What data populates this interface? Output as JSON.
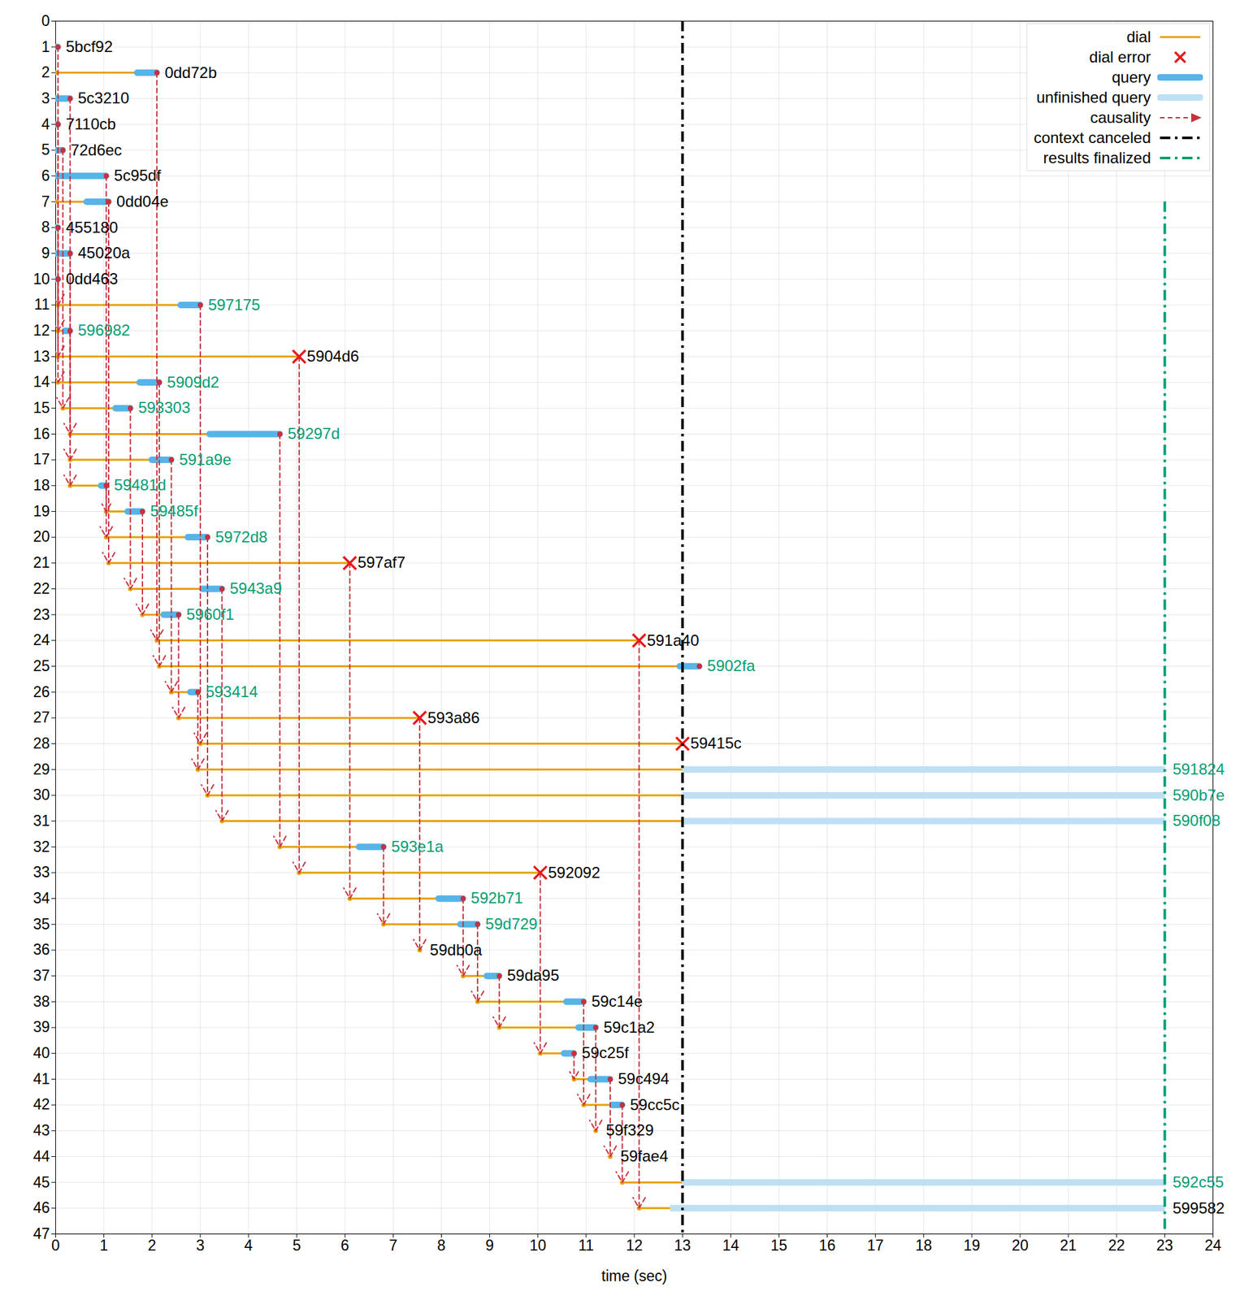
{
  "chart_data": {
    "type": "timeline",
    "xlabel": "time (sec)",
    "xlim": [
      0,
      24
    ],
    "xticks": [
      0,
      1,
      2,
      3,
      4,
      5,
      6,
      7,
      8,
      9,
      10,
      11,
      12,
      13,
      14,
      15,
      16,
      17,
      18,
      19,
      20,
      21,
      22,
      23,
      24
    ],
    "ylim": [
      0,
      47
    ],
    "yticks": [
      0,
      1,
      2,
      3,
      4,
      5,
      6,
      7,
      8,
      9,
      10,
      11,
      12,
      13,
      14,
      15,
      16,
      17,
      18,
      19,
      20,
      21,
      22,
      23,
      24,
      25,
      26,
      27,
      28,
      29,
      30,
      31,
      32,
      33,
      34,
      35,
      36,
      37,
      38,
      39,
      40,
      41,
      42,
      43,
      44,
      45,
      46,
      47
    ],
    "grid": true,
    "legend": "top-right",
    "series": [
      {
        "name": "dial",
        "color": "#e69f00",
        "line_style": "solid"
      },
      {
        "name": "dial error",
        "color": "#e41a1c",
        "marker": "x"
      },
      {
        "name": "query",
        "color": "#56b4e9",
        "line_style": "thick"
      },
      {
        "name": "unfinished query",
        "color": "#bde0f5",
        "line_style": "thick"
      },
      {
        "name": "causality",
        "color": "#c8303c",
        "line_style": "dashed",
        "marker": "arrow"
      },
      {
        "name": "context canceled",
        "color": "#000000",
        "line_style": "dashdot"
      },
      {
        "name": "results finalized",
        "color": "#009e73",
        "line_style": "dashdot"
      }
    ],
    "context_canceled": 13,
    "results_finalized": 23,
    "rows": [
      {
        "row": 1,
        "peer": "5bcf92",
        "color": "#000000",
        "query": [
          0,
          0.05
        ]
      },
      {
        "row": 2,
        "peer": "0dd72b",
        "color": "#000000",
        "dial": [
          0,
          1.7
        ],
        "query": [
          1.7,
          2.1
        ]
      },
      {
        "row": 3,
        "peer": "5c3210",
        "color": "#000000",
        "query": [
          0,
          0.3
        ]
      },
      {
        "row": 4,
        "peer": "7110cb",
        "color": "#000000",
        "query": [
          0,
          0.05
        ]
      },
      {
        "row": 5,
        "peer": "72d6ec",
        "color": "#000000",
        "query": [
          0,
          0.15
        ]
      },
      {
        "row": 6,
        "peer": "5c95df",
        "color": "#000000",
        "query": [
          0,
          1.05
        ]
      },
      {
        "row": 7,
        "peer": "0dd04e",
        "color": "#000000",
        "dial": [
          0,
          0.65
        ],
        "query": [
          0.65,
          1.1
        ]
      },
      {
        "row": 8,
        "peer": "455180",
        "color": "#000000",
        "query": [
          0,
          0.05
        ]
      },
      {
        "row": 9,
        "peer": "45020a",
        "color": "#000000",
        "query": [
          0,
          0.3
        ]
      },
      {
        "row": 10,
        "peer": "0dd463",
        "color": "#000000",
        "query": [
          0,
          0.05
        ]
      },
      {
        "row": 11,
        "peer": "597175",
        "color": "#009e73",
        "dial": [
          0.05,
          2.6
        ],
        "query": [
          2.6,
          3.0
        ]
      },
      {
        "row": 12,
        "peer": "596982",
        "color": "#009e73",
        "dial": [
          0.05,
          0.2
        ],
        "query": [
          0.2,
          0.3
        ]
      },
      {
        "row": 13,
        "peer": "5904d6",
        "color": "#000000",
        "dial": [
          0.05,
          5.05
        ],
        "error": 5.05
      },
      {
        "row": 14,
        "peer": "5909d2",
        "color": "#009e73",
        "dial": [
          0.05,
          1.75
        ],
        "query": [
          1.75,
          2.15
        ]
      },
      {
        "row": 15,
        "peer": "593303",
        "color": "#009e73",
        "dial": [
          0.15,
          1.25
        ],
        "query": [
          1.25,
          1.55
        ]
      },
      {
        "row": 16,
        "peer": "59297d",
        "color": "#009e73",
        "dial": [
          0.3,
          3.2
        ],
        "query": [
          3.2,
          4.65
        ]
      },
      {
        "row": 17,
        "peer": "591a9e",
        "color": "#009e73",
        "dial": [
          0.3,
          2.0
        ],
        "query": [
          2.0,
          2.4
        ]
      },
      {
        "row": 18,
        "peer": "59481d",
        "color": "#009e73",
        "dial": [
          0.3,
          0.95
        ],
        "query": [
          0.95,
          1.05
        ]
      },
      {
        "row": 19,
        "peer": "59485f",
        "color": "#009e73",
        "dial": [
          1.05,
          1.5
        ],
        "query": [
          1.5,
          1.8
        ]
      },
      {
        "row": 20,
        "peer": "5972d8",
        "color": "#009e73",
        "dial": [
          1.05,
          2.75
        ],
        "query": [
          2.75,
          3.15
        ]
      },
      {
        "row": 21,
        "peer": "597af7",
        "color": "#000000",
        "dial": [
          1.1,
          6.1
        ],
        "error": 6.1
      },
      {
        "row": 22,
        "peer": "5943a9",
        "color": "#009e73",
        "dial": [
          1.55,
          3.05
        ],
        "query": [
          3.05,
          3.45
        ]
      },
      {
        "row": 23,
        "peer": "5960f1",
        "color": "#009e73",
        "dial": [
          1.8,
          2.25
        ],
        "query": [
          2.25,
          2.55
        ]
      },
      {
        "row": 24,
        "peer": "591a40",
        "color": "#000000",
        "dial": [
          2.1,
          12.1
        ],
        "error": 12.1
      },
      {
        "row": 25,
        "peer": "5902fa",
        "color": "#009e73",
        "dial": [
          2.15,
          12.95
        ],
        "query": [
          12.95,
          13.35
        ]
      },
      {
        "row": 26,
        "peer": "593414",
        "color": "#009e73",
        "dial": [
          2.4,
          2.8
        ],
        "query": [
          2.8,
          2.95
        ]
      },
      {
        "row": 27,
        "peer": "593a86",
        "color": "#000000",
        "dial": [
          2.55,
          7.55
        ],
        "error": 7.55
      },
      {
        "row": 28,
        "peer": "59415c",
        "color": "#000000",
        "dial": [
          3.0,
          13.0
        ],
        "error": 13.0
      },
      {
        "row": 29,
        "peer": "591824",
        "color": "#009e73",
        "dial": [
          2.95,
          13.0
        ],
        "unfinished": [
          13.0,
          23.0
        ]
      },
      {
        "row": 30,
        "peer": "590b7e",
        "color": "#009e73",
        "dial": [
          3.15,
          13.0
        ],
        "unfinished": [
          13.0,
          23.0
        ]
      },
      {
        "row": 31,
        "peer": "590f08",
        "color": "#009e73",
        "dial": [
          3.45,
          13.0
        ],
        "unfinished": [
          13.0,
          23.0
        ]
      },
      {
        "row": 32,
        "peer": "593e1a",
        "color": "#009e73",
        "dial": [
          4.65,
          6.3
        ],
        "query": [
          6.3,
          6.8
        ]
      },
      {
        "row": 33,
        "peer": "592092",
        "color": "#000000",
        "dial": [
          5.05,
          10.05
        ],
        "error": 10.05
      },
      {
        "row": 34,
        "peer": "592b71",
        "color": "#009e73",
        "dial": [
          6.1,
          7.95
        ],
        "query": [
          7.95,
          8.45
        ]
      },
      {
        "row": 35,
        "peer": "59d729",
        "color": "#009e73",
        "dial": [
          6.8,
          8.4
        ],
        "query": [
          8.4,
          8.75
        ]
      },
      {
        "row": 36,
        "peer": "59db0a",
        "color": "#000000",
        "dial": [
          7.55,
          7.6
        ]
      },
      {
        "row": 37,
        "peer": "59da95",
        "color": "#000000",
        "dial": [
          8.45,
          8.95
        ],
        "query": [
          8.95,
          9.2
        ]
      },
      {
        "row": 38,
        "peer": "59c14e",
        "color": "#000000",
        "dial": [
          8.75,
          10.6
        ],
        "query": [
          10.6,
          10.95
        ]
      },
      {
        "row": 39,
        "peer": "59c1a2",
        "color": "#000000",
        "dial": [
          9.2,
          10.85
        ],
        "query": [
          10.85,
          11.2
        ]
      },
      {
        "row": 40,
        "peer": "59c25f",
        "color": "#000000",
        "dial": [
          10.05,
          10.55
        ],
        "query": [
          10.55,
          10.75
        ]
      },
      {
        "row": 41,
        "peer": "59c494",
        "color": "#000000",
        "dial": [
          10.75,
          11.1
        ],
        "query": [
          11.1,
          11.5
        ]
      },
      {
        "row": 42,
        "peer": "59cc5c",
        "color": "#000000",
        "dial": [
          10.95,
          11.55
        ],
        "query": [
          11.55,
          11.75
        ]
      },
      {
        "row": 43,
        "peer": "59f329",
        "color": "#000000",
        "dial": [
          11.2,
          11.25
        ]
      },
      {
        "row": 44,
        "peer": "59fae4",
        "color": "#000000",
        "dial": [
          11.5,
          11.55
        ]
      },
      {
        "row": 45,
        "peer": "592c55",
        "color": "#009e73",
        "dial": [
          11.75,
          13.0
        ],
        "unfinished": [
          13.0,
          23.0
        ]
      },
      {
        "row": 46,
        "peer": "599582",
        "color": "#000000",
        "dial": [
          12.1,
          12.75
        ],
        "unfinished": [
          12.75,
          23.0
        ]
      }
    ],
    "causality": [
      {
        "from": 1,
        "to": 11,
        "t": 0.05
      },
      {
        "from": 4,
        "to": 12,
        "t": 0.05
      },
      {
        "from": 8,
        "to": 13,
        "t": 0.05
      },
      {
        "from": 10,
        "to": 14,
        "t": 0.05
      },
      {
        "from": 5,
        "to": 15,
        "t": 0.15
      },
      {
        "from": 3,
        "to": 16,
        "t": 0.3
      },
      {
        "from": 9,
        "to": 17,
        "t": 0.3
      },
      {
        "from": 12,
        "to": 18,
        "t": 0.3
      },
      {
        "from": 18,
        "to": 19,
        "t": 1.05
      },
      {
        "from": 6,
        "to": 20,
        "t": 1.05
      },
      {
        "from": 7,
        "to": 21,
        "t": 1.1
      },
      {
        "from": 15,
        "to": 22,
        "t": 1.55
      },
      {
        "from": 19,
        "to": 23,
        "t": 1.8
      },
      {
        "from": 2,
        "to": 24,
        "t": 2.1
      },
      {
        "from": 14,
        "to": 25,
        "t": 2.15
      },
      {
        "from": 17,
        "to": 26,
        "t": 2.4
      },
      {
        "from": 23,
        "to": 27,
        "t": 2.55
      },
      {
        "from": 11,
        "to": 28,
        "t": 3.0
      },
      {
        "from": 26,
        "to": 29,
        "t": 2.95
      },
      {
        "from": 20,
        "to": 30,
        "t": 3.15
      },
      {
        "from": 22,
        "to": 31,
        "t": 3.45
      },
      {
        "from": 16,
        "to": 32,
        "t": 4.65
      },
      {
        "from": 13,
        "to": 33,
        "t": 5.05
      },
      {
        "from": 21,
        "to": 34,
        "t": 6.1
      },
      {
        "from": 32,
        "to": 35,
        "t": 6.8
      },
      {
        "from": 27,
        "to": 36,
        "t": 7.55
      },
      {
        "from": 34,
        "to": 37,
        "t": 8.45
      },
      {
        "from": 35,
        "to": 38,
        "t": 8.75
      },
      {
        "from": 37,
        "to": 39,
        "t": 9.2
      },
      {
        "from": 33,
        "to": 40,
        "t": 10.05
      },
      {
        "from": 40,
        "to": 41,
        "t": 10.75
      },
      {
        "from": 38,
        "to": 42,
        "t": 10.95
      },
      {
        "from": 39,
        "to": 43,
        "t": 11.2
      },
      {
        "from": 41,
        "to": 44,
        "t": 11.5
      },
      {
        "from": 42,
        "to": 45,
        "t": 11.75
      },
      {
        "from": 24,
        "to": 46,
        "t": 12.1
      }
    ]
  }
}
